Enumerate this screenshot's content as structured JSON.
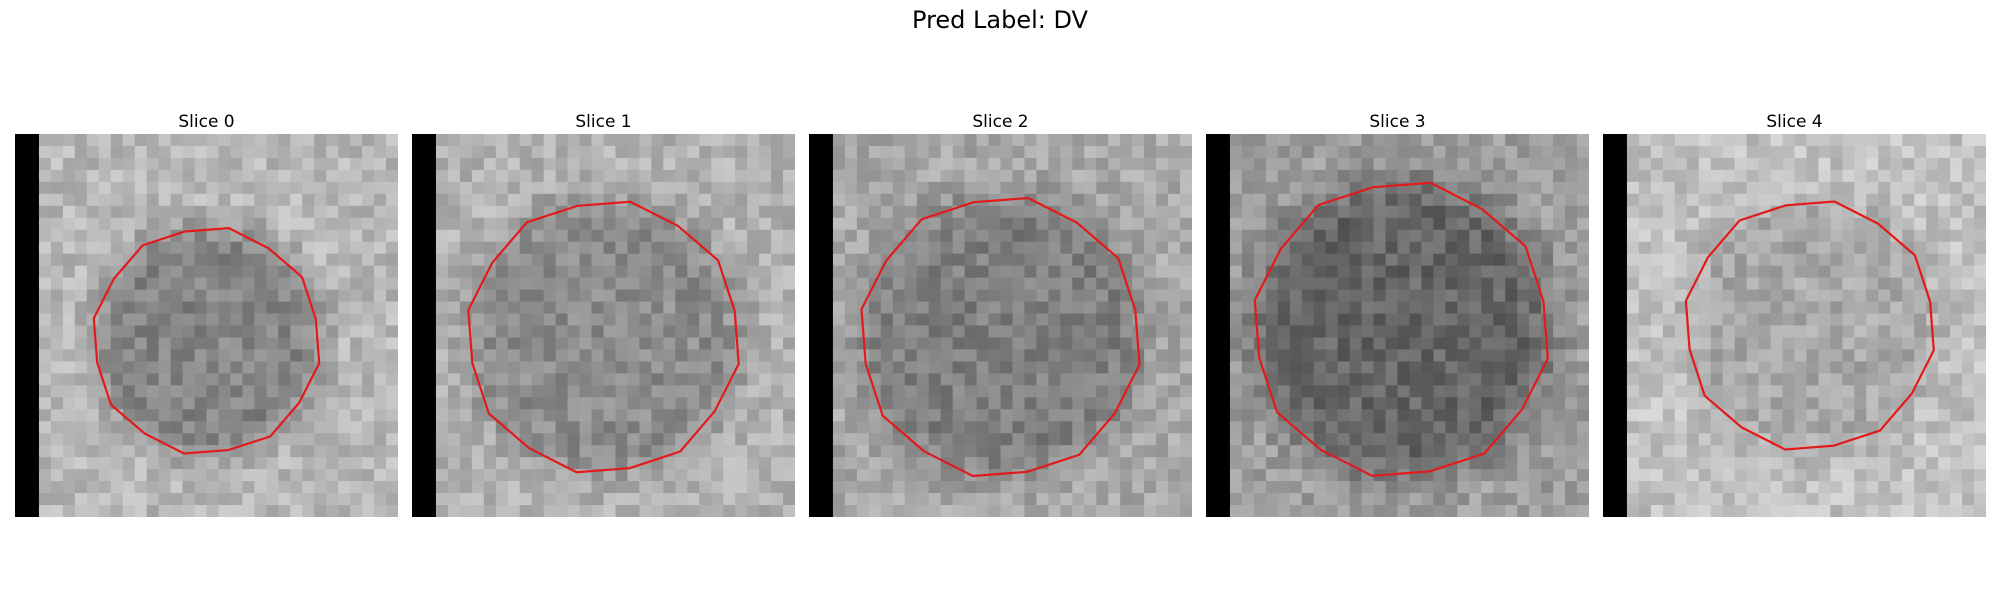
{
  "figure": {
    "title": "Pred Label: DV"
  },
  "panels": [
    {
      "title": "Slice 0",
      "seed": 11,
      "base": 0.72,
      "inner": 0.52
    },
    {
      "title": "Slice 1",
      "seed": 23,
      "base": 0.7,
      "inner": 0.55
    },
    {
      "title": "Slice 2",
      "seed": 37,
      "base": 0.66,
      "inner": 0.5
    },
    {
      "title": "Slice 3",
      "seed": 53,
      "base": 0.62,
      "inner": 0.4
    },
    {
      "title": "Slice 4",
      "seed": 71,
      "base": 0.76,
      "inner": 0.66
    }
  ],
  "colors": {
    "contour": "#e31a1c",
    "edge_bar": "#000000"
  }
}
